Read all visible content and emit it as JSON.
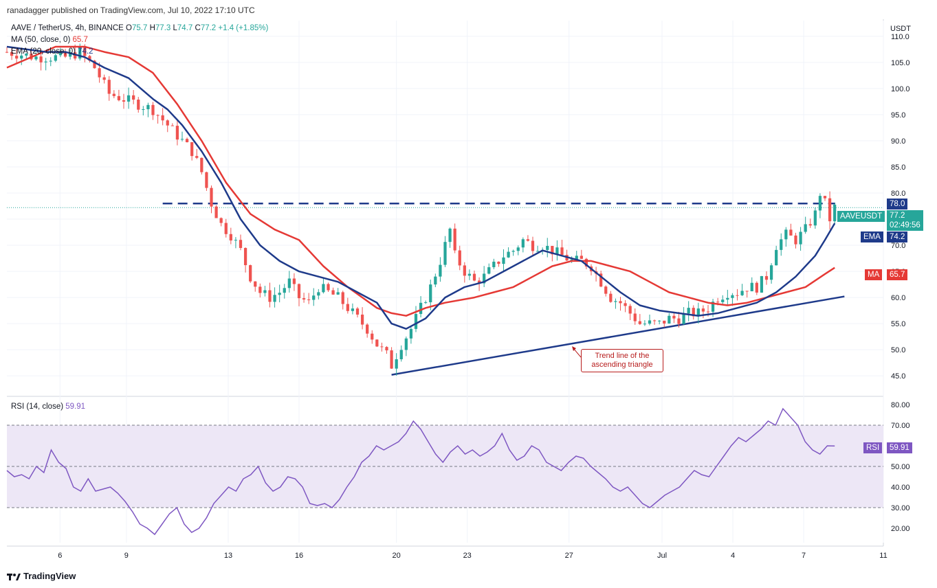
{
  "header": {
    "published": "ranadagger published on TradingView.com, Jul 10, 2022 17:10 UTC"
  },
  "legend": {
    "symbol": "AAVE / TetherUS, 4h, BINANCE",
    "o_label": "O",
    "o": "75.7",
    "h_label": "H",
    "h": "77.3",
    "l_label": "L",
    "l": "74.7",
    "c_label": "C",
    "c": "77.2",
    "change": "+1.4 (+1.85%)",
    "ma_label": "MA (50, close, 0)",
    "ma_value": "65.7",
    "ema_label": "EMA (20, close, 0)",
    "ema_value": "74.2",
    "rsi_label": "RSI (14, close)",
    "rsi_value": "59.91"
  },
  "price_tags": {
    "resistance": "78.0",
    "symbol": "AAVEUSDT",
    "last": "77.2",
    "countdown": "02:49:56",
    "ema_label": "EMA",
    "ema": "74.2",
    "ma_label": "MA",
    "ma": "65.7",
    "rsi_label": "RSI",
    "rsi": "59.91"
  },
  "annotation": {
    "line1": "Trend line of the",
    "line2": "ascending triangle"
  },
  "footer": {
    "brand": "TradingView"
  },
  "colors": {
    "up": "#26a69a",
    "down": "#ef5350",
    "ma": "#e53935",
    "ema": "#1e3a8a",
    "trendline": "#1e3a8a",
    "rsi": "#7e57c2",
    "rsi_band": "#ede7f6"
  },
  "chart_data": [
    {
      "type": "candlestick",
      "title": "AAVE / TetherUS, 4h, BINANCE",
      "ylabel": "USDT",
      "ylim": [
        42,
        113
      ],
      "y_ticks": [
        "110.0",
        "105.0",
        "100.0",
        "95.0",
        "90.0",
        "85.0",
        "80.0",
        "75.0",
        "70.0",
        "65.0",
        "60.0",
        "55.0",
        "50.0",
        "45.0"
      ],
      "x_ticks": [
        "6",
        "9",
        "13",
        "16",
        "20",
        "23",
        "27",
        "Jul",
        "4",
        "7",
        "11"
      ],
      "close_path": [
        [
          0,
          107
        ],
        [
          6,
          106
        ],
        [
          12,
          106
        ],
        [
          15,
          107
        ],
        [
          18,
          104
        ],
        [
          21,
          99
        ],
        [
          24,
          98
        ],
        [
          27,
          97
        ],
        [
          30,
          96
        ],
        [
          33,
          93
        ],
        [
          36,
          90
        ],
        [
          38,
          88
        ],
        [
          40,
          84
        ],
        [
          42,
          78
        ],
        [
          44,
          74
        ],
        [
          46,
          72
        ],
        [
          48,
          69
        ],
        [
          50,
          64
        ],
        [
          52,
          61
        ],
        [
          54,
          60
        ],
        [
          56,
          61
        ],
        [
          58,
          63
        ],
        [
          60,
          60
        ],
        [
          62,
          59
        ],
        [
          64,
          62
        ],
        [
          66,
          61
        ],
        [
          68,
          60
        ],
        [
          70,
          58
        ],
        [
          72,
          56
        ],
        [
          74,
          54
        ],
        [
          76,
          51
        ],
        [
          78,
          49
        ],
        [
          79,
          47
        ],
        [
          81,
          51
        ],
        [
          83,
          54
        ],
        [
          85,
          58
        ],
        [
          87,
          62
        ],
        [
          89,
          67
        ],
        [
          91,
          73
        ],
        [
          92,
          68
        ],
        [
          94,
          65
        ],
        [
          96,
          63
        ],
        [
          98,
          64
        ],
        [
          100,
          66
        ],
        [
          102,
          68
        ],
        [
          104,
          69
        ],
        [
          106,
          71
        ],
        [
          108,
          70
        ],
        [
          110,
          70
        ],
        [
          112,
          69
        ],
        [
          114,
          68
        ],
        [
          116,
          67
        ],
        [
          118,
          67
        ],
        [
          120,
          66
        ],
        [
          122,
          63
        ],
        [
          124,
          60
        ],
        [
          126,
          59
        ],
        [
          128,
          57
        ],
        [
          130,
          55
        ],
        [
          132,
          55
        ],
        [
          134,
          55
        ],
        [
          136,
          56
        ],
        [
          138,
          56
        ],
        [
          140,
          57
        ],
        [
          142,
          57
        ],
        [
          144,
          58
        ],
        [
          146,
          60
        ],
        [
          148,
          61
        ],
        [
          150,
          61
        ],
        [
          152,
          62
        ],
        [
          154,
          62
        ],
        [
          156,
          64
        ],
        [
          158,
          70
        ],
        [
          160,
          72
        ],
        [
          162,
          71
        ],
        [
          164,
          73
        ],
        [
          166,
          76
        ],
        [
          167,
          80
        ],
        [
          168,
          78
        ],
        [
          169,
          75
        ],
        [
          170,
          77.2
        ]
      ],
      "ma50_path": [
        [
          0,
          104
        ],
        [
          10,
          108
        ],
        [
          16,
          108
        ],
        [
          20,
          107
        ],
        [
          25,
          106
        ],
        [
          30,
          103
        ],
        [
          35,
          97
        ],
        [
          40,
          90
        ],
        [
          45,
          82
        ],
        [
          50,
          76
        ],
        [
          55,
          73
        ],
        [
          60,
          71
        ],
        [
          65,
          66
        ],
        [
          70,
          62
        ],
        [
          73,
          60
        ],
        [
          76,
          58
        ],
        [
          79,
          57
        ],
        [
          82,
          56.5
        ],
        [
          86,
          58
        ],
        [
          90,
          59
        ],
        [
          96,
          60
        ],
        [
          100,
          61
        ],
        [
          104,
          62
        ],
        [
          108,
          64
        ],
        [
          112,
          66
        ],
        [
          116,
          67
        ],
        [
          120,
          67
        ],
        [
          124,
          66
        ],
        [
          128,
          65
        ],
        [
          132,
          63
        ],
        [
          136,
          61
        ],
        [
          140,
          60
        ],
        [
          144,
          59
        ],
        [
          148,
          58.5
        ],
        [
          152,
          59
        ],
        [
          156,
          60
        ],
        [
          160,
          61
        ],
        [
          164,
          62
        ],
        [
          168,
          64.5
        ],
        [
          170,
          65.7
        ]
      ],
      "ema20_path": [
        [
          0,
          108
        ],
        [
          8,
          107
        ],
        [
          12,
          107
        ],
        [
          16,
          106
        ],
        [
          20,
          104
        ],
        [
          25,
          102
        ],
        [
          30,
          98
        ],
        [
          33,
          96
        ],
        [
          36,
          93
        ],
        [
          40,
          88
        ],
        [
          44,
          82
        ],
        [
          48,
          75
        ],
        [
          52,
          70
        ],
        [
          56,
          67
        ],
        [
          60,
          65
        ],
        [
          64,
          64
        ],
        [
          68,
          63
        ],
        [
          72,
          61
        ],
        [
          76,
          59
        ],
        [
          79,
          55
        ],
        [
          82,
          54
        ],
        [
          86,
          56
        ],
        [
          90,
          60
        ],
        [
          94,
          62
        ],
        [
          98,
          63
        ],
        [
          102,
          65
        ],
        [
          106,
          67
        ],
        [
          110,
          69
        ],
        [
          114,
          68
        ],
        [
          118,
          67
        ],
        [
          122,
          64
        ],
        [
          126,
          61
        ],
        [
          130,
          58.5
        ],
        [
          134,
          57.5
        ],
        [
          138,
          57
        ],
        [
          142,
          56.5
        ],
        [
          146,
          57
        ],
        [
          150,
          58
        ],
        [
          154,
          59
        ],
        [
          158,
          61
        ],
        [
          162,
          64
        ],
        [
          166,
          68
        ],
        [
          168,
          71
        ],
        [
          170,
          74.2
        ]
      ],
      "resistance": {
        "value": 78.0,
        "label": "78.0"
      },
      "trend_line": {
        "from": [
          79,
          45.2
        ],
        "to": [
          172,
          60.2
        ]
      }
    },
    {
      "type": "line",
      "title": "RSI (14, close)",
      "ylim": [
        13,
        83
      ],
      "y_ticks": [
        "80.00",
        "70.00",
        "60.00",
        "50.00",
        "40.00",
        "30.00",
        "20.00"
      ],
      "bands": {
        "upper": 70,
        "middle": 50,
        "lower": 30
      },
      "series": [
        {
          "name": "RSI",
          "values": [
            48,
            45,
            46,
            44,
            50,
            47,
            58,
            52,
            49,
            40,
            38,
            44,
            38,
            39,
            40,
            37,
            33,
            28,
            22,
            20,
            17,
            22,
            27,
            30,
            22,
            18,
            20,
            25,
            32,
            36,
            40,
            38,
            44,
            46,
            50,
            42,
            38,
            40,
            45,
            44,
            40,
            32,
            31,
            32,
            30,
            34,
            40,
            45,
            52,
            55,
            60,
            58,
            60,
            62,
            66,
            72,
            68,
            62,
            56,
            52,
            57,
            60,
            56,
            58,
            55,
            57,
            60,
            66,
            58,
            53,
            55,
            60,
            58,
            52,
            50,
            48,
            52,
            55,
            54,
            50,
            47,
            44,
            40,
            38,
            40,
            36,
            32,
            30,
            33,
            36,
            38,
            40,
            44,
            48,
            46,
            45,
            50,
            55,
            60,
            64,
            62,
            65,
            68,
            72,
            70,
            78,
            74,
            70,
            62,
            58,
            56,
            60,
            59.91
          ]
        }
      ]
    }
  ]
}
